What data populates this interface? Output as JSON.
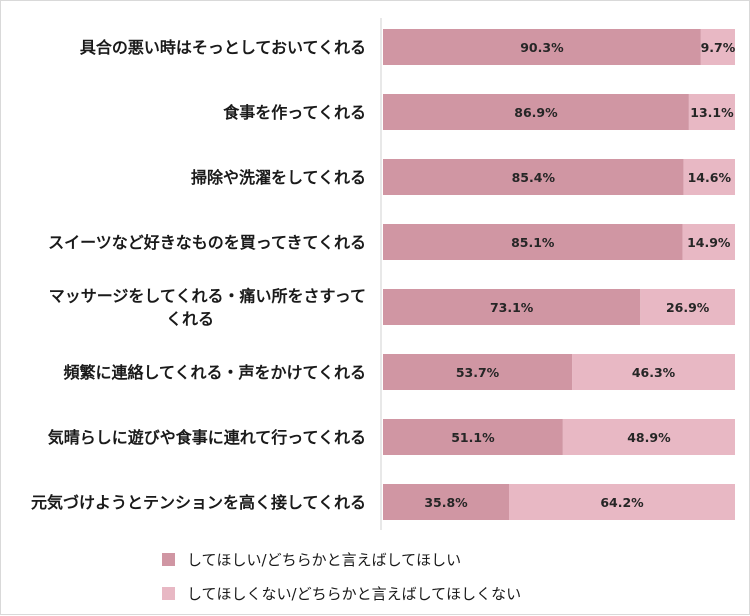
{
  "chart_data": {
    "type": "bar",
    "stacked": true,
    "orientation": "horizontal",
    "categories": [
      [
        "具合の悪い時はそっとしておいてくれる"
      ],
      [
        "食事を作ってくれる"
      ],
      [
        "掃除や洗濯をしてくれる"
      ],
      [
        "スイーツなど好きなものを買ってきてくれる"
      ],
      [
        "マッサージをしてくれる・痛い所をさすって",
        "くれる"
      ],
      [
        "頻繁に連絡してくれる・声をかけてくれる"
      ],
      [
        "気晴らしに遊びや食事に連れて行ってくれる"
      ],
      [
        "元気づけようとテンションを高く接してくれる"
      ]
    ],
    "series": [
      {
        "name": "してほしい/どちらかと言えばしてほしい",
        "color": "#d096a3",
        "values": [
          90.3,
          86.9,
          85.4,
          85.1,
          73.1,
          53.7,
          51.1,
          35.8
        ],
        "labels": [
          "90.3%",
          "86.9%",
          "85.4%",
          "85.1%",
          "73.1%",
          "53.7%",
          "51.1%",
          "35.8%"
        ]
      },
      {
        "name": "してほしくない/どちらかと言えばしてほしくない",
        "color": "#e8b8c4",
        "values": [
          9.7,
          13.1,
          14.6,
          14.9,
          26.9,
          46.3,
          48.9,
          64.2
        ],
        "labels": [
          "9.7%",
          "13.1%",
          "14.6%",
          "14.9%",
          "26.9%",
          "46.3%",
          "48.9%",
          "64.2%"
        ]
      }
    ],
    "xlim": [
      0,
      100
    ],
    "grid": false,
    "legend_position": "bottom"
  }
}
